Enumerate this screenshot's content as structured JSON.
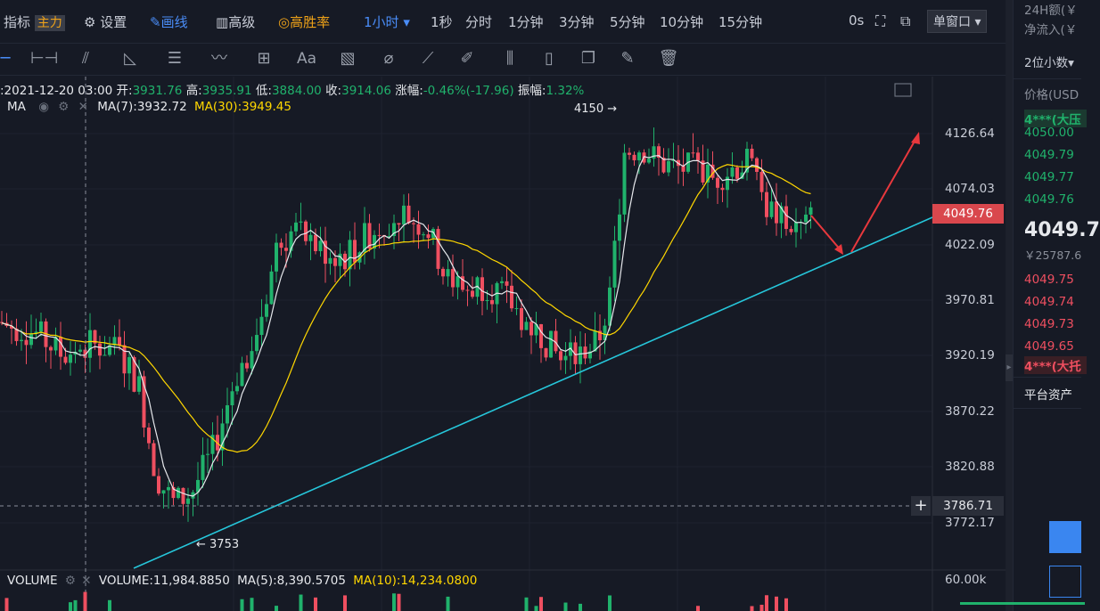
{
  "topbar": {
    "indicator": "指标",
    "main_tag": "主力",
    "settings": "设置",
    "draw": "画线",
    "advanced": "高级",
    "win_rate": "高胜率",
    "timeframes": [
      "1小时",
      "1秒",
      "分时",
      "1分钟",
      "3分钟",
      "5分钟",
      "10分钟",
      "15分钟"
    ],
    "countdown": "0s",
    "window_mode": "单窗口"
  },
  "toolbar": {
    "text_tool": "Aa"
  },
  "ohlc": {
    "time": ":2021-12-20 03:00",
    "open_label": "开:",
    "open": "3931.76",
    "high_label": "高:",
    "high": "3935.91",
    "low_label": "低:",
    "low": "3884.00",
    "close_label": "收:",
    "close": "3914.06",
    "change_label": "涨幅:",
    "change": "-0.46%(-17.96)",
    "amp_label": "振幅:",
    "amp": "1.32%"
  },
  "ma": {
    "title": "MA",
    "ma7": "MA(7):3932.72",
    "ma30": "MA(30):3949.45"
  },
  "volume": {
    "title": "VOLUME",
    "volume": "VOLUME:11,984.8850",
    "ma5": "MA(5):8,390.5705",
    "ma10": "MA(10):14,234.0800",
    "axis_label": "60.00k"
  },
  "price_axis": {
    "labels": [
      "4126.64",
      "4074.03",
      "4022.09",
      "3970.81",
      "3920.19",
      "3870.22",
      "3820.88",
      "3772.17"
    ],
    "current": "4049.76",
    "crosshair": "3786.71"
  },
  "chart_marks": {
    "high_mark": "4150 →",
    "low_mark": "← 3753"
  },
  "right_panel": {
    "h24": "24H额(￥",
    "inflow": "净流入(￥",
    "decimals": "2位小数",
    "price_header": "价格(USD",
    "ask_label": "4***(大压",
    "asks": [
      "4050.00",
      "4049.79",
      "4049.77",
      "4049.76"
    ],
    "last": "4049.7",
    "last_cny": "￥25787.6",
    "bids": [
      "4049.75",
      "4049.74",
      "4049.73",
      "4049.65"
    ],
    "bid_label": "4***(大托",
    "assets": "平台资产"
  },
  "colors": {
    "up": "#20b26c",
    "down": "#ef4f60",
    "ma7": "#e6e8ec",
    "ma30": "#ffd700",
    "trendline": "#26c6da",
    "arrow": "#e8383d"
  }
}
